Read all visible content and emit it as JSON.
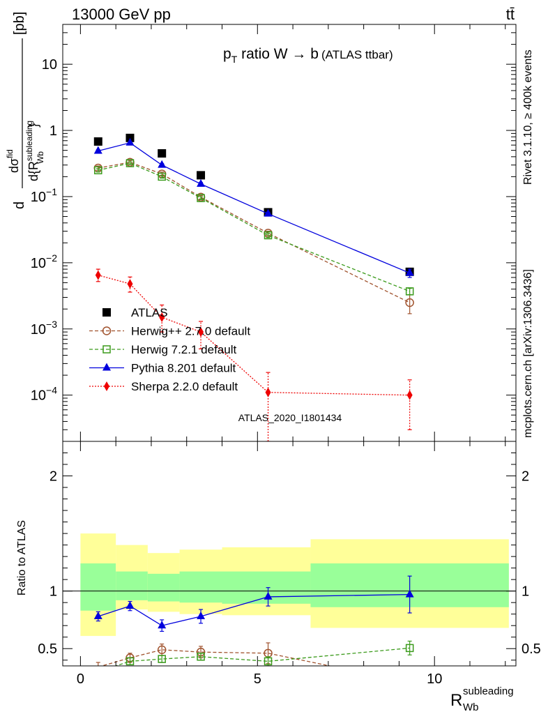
{
  "header": {
    "left": "13000 GeV pp",
    "right": "tt̄"
  },
  "title": {
    "main": "p",
    "sub": "T",
    "rest": " ratio W → b",
    "tag": "(ATLAS ttbar)"
  },
  "side_labels": {
    "rivet": "Rivet 3.1.10, ≥ 400k events",
    "mcplots": "mcplots.cern.ch [arXiv:1306.3436]"
  },
  "watermark": "ATLAS_2020_I1801434",
  "colors": {
    "atlas": "#000000",
    "herwigpp": "#a0522d",
    "herwig7": "#3a9a1a",
    "pythia": "#0000dd",
    "sherpa": "#ee0000",
    "band_outer": "#ffff99",
    "band_inner": "#99ff99"
  },
  "chart_data": [
    {
      "type": "scatter",
      "panel": "main",
      "yscale": "log",
      "ylim": [
        2e-05,
        40
      ],
      "xlim": [
        -0.5,
        12.3
      ],
      "ylabel": "d σ^fid / d{R_Wb^subleading} [pb]",
      "yticks": [
        {
          "v": 0.0001,
          "b": "10",
          "e": "−4"
        },
        {
          "v": 0.001,
          "b": "10",
          "e": "−3"
        },
        {
          "v": 0.01,
          "b": "10",
          "e": "−2"
        },
        {
          "v": 0.1,
          "b": "10",
          "e": "−1"
        },
        {
          "v": 1,
          "b": "1",
          "e": ""
        },
        {
          "v": 10,
          "b": "10",
          "e": ""
        }
      ],
      "legend_position": "lower-left",
      "series": [
        {
          "key": "atlas",
          "name": "ATLAS",
          "marker": "square",
          "line": "none",
          "x": [
            0.5,
            1.4,
            2.3,
            3.4,
            5.3,
            9.3
          ],
          "y": [
            0.68,
            0.77,
            0.45,
            0.21,
            0.058,
            0.0073
          ],
          "err": [
            0.02,
            0.02,
            0.015,
            0.008,
            0.003,
            0.0005
          ]
        },
        {
          "key": "herwigpp",
          "name": "Herwig++ 2.7.0 default",
          "marker": "open-circle",
          "line": "dashed",
          "x": [
            0.5,
            1.4,
            2.3,
            3.4,
            5.3,
            9.3
          ],
          "y": [
            0.27,
            0.33,
            0.22,
            0.098,
            0.028,
            0.0025
          ],
          "err": [
            0.02,
            0.02,
            0.015,
            0.006,
            0.002,
            0.0008
          ]
        },
        {
          "key": "herwig7",
          "name": "Herwig 7.2.1 default",
          "marker": "open-square",
          "line": "dashed",
          "x": [
            0.5,
            1.4,
            2.3,
            3.4,
            5.3,
            9.3
          ],
          "y": [
            0.25,
            0.32,
            0.2,
            0.095,
            0.026,
            0.0037
          ],
          "err": [
            0.015,
            0.015,
            0.01,
            0.005,
            0.002,
            0.0004
          ]
        },
        {
          "key": "pythia",
          "name": "Pythia 8.201 default",
          "marker": "triangle",
          "line": "solid",
          "x": [
            0.5,
            1.4,
            2.3,
            3.4,
            5.3,
            9.3
          ],
          "y": [
            0.49,
            0.65,
            0.3,
            0.155,
            0.055,
            0.007
          ],
          "err": [
            0.02,
            0.02,
            0.015,
            0.008,
            0.003,
            0.001
          ]
        },
        {
          "key": "sherpa",
          "name": "Sherpa 2.2.0 default",
          "marker": "diamond",
          "line": "dotted",
          "x": [
            0.5,
            1.4,
            2.3,
            3.4,
            5.3,
            9.3
          ],
          "y": [
            0.0065,
            0.0048,
            0.0015,
            0.0009,
            0.00011,
            0.0001
          ],
          "yerr_low": [
            0.0013,
            0.0012,
            0.0006,
            0.0004,
            9e-05,
            7e-05
          ],
          "yerr_high": [
            0.0015,
            0.0013,
            0.0008,
            0.0004,
            0.00011,
            7e-05
          ]
        }
      ]
    },
    {
      "type": "scatter",
      "panel": "ratio",
      "ylim": [
        0.35,
        2.3
      ],
      "xlim": [
        -0.5,
        12.3
      ],
      "ylabel": "Ratio to ATLAS",
      "xlabel_base": "R",
      "xlabel_sup": "subleading",
      "xlabel_sub": "Wb",
      "yticks": [
        0.5,
        1,
        2
      ],
      "xticks": [
        0,
        5,
        10
      ],
      "bands": [
        {
          "x0": 0.0,
          "x1": 1.0,
          "outer": [
            0.61,
            1.5
          ],
          "inner": [
            0.83,
            1.24
          ]
        },
        {
          "x0": 1.0,
          "x1": 1.9,
          "outer": [
            0.84,
            1.4
          ],
          "inner": [
            0.92,
            1.17
          ]
        },
        {
          "x0": 1.9,
          "x1": 2.8,
          "outer": [
            0.82,
            1.33
          ],
          "inner": [
            0.91,
            1.15
          ]
        },
        {
          "x0": 2.8,
          "x1": 4.0,
          "outer": [
            0.8,
            1.36
          ],
          "inner": [
            0.9,
            1.17
          ]
        },
        {
          "x0": 4.0,
          "x1": 6.5,
          "outer": [
            0.79,
            1.38
          ],
          "inner": [
            0.89,
            1.17
          ]
        },
        {
          "x0": 6.5,
          "x1": 12.1,
          "outer": [
            0.68,
            1.45
          ],
          "inner": [
            0.86,
            1.24
          ]
        }
      ],
      "series": [
        {
          "key": "herwigpp",
          "x": [
            0.5,
            1.4,
            2.3,
            3.4,
            5.3,
            7.2
          ],
          "y": [
            0.34,
            0.42,
            0.49,
            0.47,
            0.46,
            0.34
          ],
          "err": [
            0.04,
            0.04,
            0.05,
            0.05,
            0.09,
            0
          ]
        },
        {
          "key": "herwig7",
          "x": [
            0.5,
            1.4,
            2.3,
            3.4,
            5.3,
            9.3
          ],
          "y": [
            0.3,
            0.39,
            0.41,
            0.43,
            0.39,
            0.505
          ],
          "err": [
            0.03,
            0.03,
            0.03,
            0.03,
            0.04,
            0.06
          ]
        },
        {
          "key": "pythia",
          "x": [
            0.5,
            1.4,
            2.3,
            3.4,
            5.3,
            9.3
          ],
          "y": [
            0.78,
            0.87,
            0.7,
            0.78,
            0.95,
            0.97
          ],
          "err": [
            0.04,
            0.04,
            0.05,
            0.06,
            0.08,
            0.16
          ]
        }
      ]
    }
  ]
}
